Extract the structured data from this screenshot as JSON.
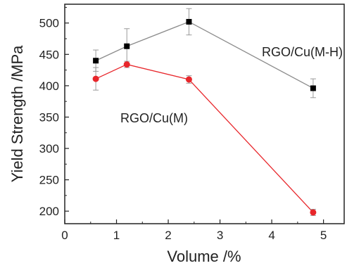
{
  "chart_data": {
    "type": "line",
    "title": "",
    "xlabel": "Volume /%",
    "ylabel": "Yield Strength /MPa",
    "xlim": [
      0,
      5.4
    ],
    "ylim": [
      180,
      530
    ],
    "xticks": [
      0,
      1,
      2,
      3,
      4,
      5
    ],
    "yticks": [
      200,
      250,
      300,
      350,
      400,
      450,
      500
    ],
    "grid": false,
    "series": [
      {
        "name": "RGO/Cu(M-H)",
        "color": "#000000",
        "line_color": "#8c8c8c",
        "marker": "square",
        "x": [
          0.6,
          1.2,
          2.4,
          4.8
        ],
        "y": [
          440,
          463,
          502,
          396
        ],
        "err": [
          17,
          28,
          21,
          15
        ]
      },
      {
        "name": "RGO/Cu(M)",
        "color": "#e8262b",
        "line_color": "#e8262b",
        "marker": "circle",
        "x": [
          0.6,
          1.2,
          2.4,
          4.8
        ],
        "y": [
          411,
          434,
          410,
          198
        ],
        "err": [
          18,
          5,
          6,
          5
        ]
      }
    ]
  }
}
